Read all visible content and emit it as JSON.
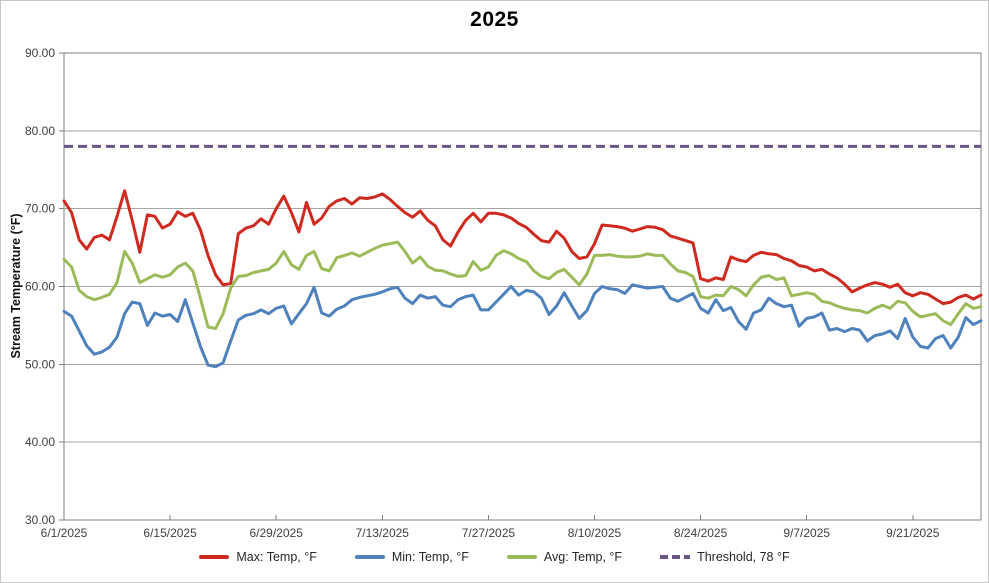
{
  "chart_data": {
    "type": "line",
    "title": "2025",
    "ylabel": "Stream Temperature (°F)",
    "xlabel": "",
    "ylim": [
      30,
      90
    ],
    "x_range_days": [
      0,
      121
    ],
    "x_index_unit": "days from 6/1/2025 (daily values)",
    "grid": "horizontal",
    "legend_position": "bottom",
    "colors": {
      "gridline": "#a6a6a6",
      "axis": "#7f7f7f",
      "tick_text": "#3f3f3f",
      "title_text": "#000000"
    },
    "y_ticks": [
      {
        "value": 90,
        "label": "90.00"
      },
      {
        "value": 80,
        "label": "80.00"
      },
      {
        "value": 70,
        "label": "70.00"
      },
      {
        "value": 60,
        "label": "60.00"
      },
      {
        "value": 50,
        "label": "50.00"
      },
      {
        "value": 40,
        "label": "40.00"
      },
      {
        "value": 30,
        "label": "30.00"
      }
    ],
    "x_ticks": [
      {
        "day": 0,
        "label": "6/1/2025"
      },
      {
        "day": 14,
        "label": "6/15/2025"
      },
      {
        "day": 28,
        "label": "6/29/2025"
      },
      {
        "day": 42,
        "label": "7/13/2025"
      },
      {
        "day": 56,
        "label": "7/27/2025"
      },
      {
        "day": 70,
        "label": "8/10/2025"
      },
      {
        "day": 84,
        "label": "8/24/2025"
      },
      {
        "day": 98,
        "label": "9/7/2025"
      },
      {
        "day": 112,
        "label": "9/21/2025"
      }
    ],
    "series": [
      {
        "name": "Max: Temp, °F",
        "color": "#cf2a20",
        "style": "solid",
        "values": [
          71.0,
          69.5,
          66.0,
          64.8,
          66.3,
          66.6,
          66.0,
          69.0,
          72.3,
          68.5,
          64.4,
          69.2,
          69.0,
          67.5,
          68.0,
          69.6,
          69.0,
          69.4,
          67.3,
          64.0,
          61.5,
          60.2,
          60.4,
          66.8,
          67.5,
          67.8,
          68.7,
          68.0,
          70.0,
          71.6,
          69.5,
          67.0,
          70.8,
          68.0,
          68.8,
          70.3,
          71.0,
          71.3,
          70.6,
          71.4,
          71.3,
          71.5,
          71.9,
          71.2,
          70.3,
          69.5,
          68.9,
          69.7,
          68.5,
          67.8,
          66.0,
          65.2,
          67.0,
          68.5,
          69.4,
          68.3,
          69.4,
          69.4,
          69.2,
          68.8,
          68.1,
          67.6,
          66.7,
          65.9,
          65.7,
          67.1,
          66.2,
          64.5,
          63.6,
          63.8,
          65.5,
          67.9,
          67.8,
          67.7,
          67.5,
          67.1,
          67.4,
          67.7,
          67.6,
          67.3,
          66.5,
          66.2,
          65.9,
          65.6,
          61.0,
          60.7,
          61.1,
          60.9,
          63.8,
          63.4,
          63.2,
          64.0,
          64.4,
          64.2,
          64.1,
          63.6,
          63.3,
          62.7,
          62.5,
          62.0,
          62.2,
          61.6,
          61.1,
          60.3,
          59.3,
          59.8,
          60.2,
          60.5,
          60.3,
          59.9,
          60.3,
          59.2,
          58.8,
          59.2,
          59.0,
          58.4,
          57.8,
          58.0,
          58.6,
          58.9,
          58.4,
          58.9
        ]
      },
      {
        "name": "Min: Temp, °F",
        "color": "#4f81bd",
        "style": "solid",
        "values": [
          56.8,
          56.2,
          54.3,
          52.4,
          51.3,
          51.6,
          52.2,
          53.5,
          56.5,
          58.0,
          57.8,
          55.0,
          56.6,
          56.2,
          56.4,
          55.5,
          58.3,
          55.3,
          52.3,
          49.9,
          49.7,
          50.2,
          53.0,
          55.7,
          56.3,
          56.5,
          57.0,
          56.5,
          57.2,
          57.5,
          55.2,
          56.5,
          57.8,
          59.9,
          56.6,
          56.2,
          57.1,
          57.5,
          58.3,
          58.6,
          58.8,
          59.0,
          59.3,
          59.7,
          59.9,
          58.5,
          57.8,
          58.9,
          58.5,
          58.7,
          57.6,
          57.4,
          58.3,
          58.7,
          58.9,
          57.0,
          57.0,
          58.0,
          59.0,
          60.0,
          58.9,
          59.5,
          59.3,
          58.5,
          56.4,
          57.5,
          59.2,
          57.5,
          55.9,
          56.9,
          59.1,
          60.0,
          59.7,
          59.6,
          59.1,
          60.2,
          60.0,
          59.8,
          59.9,
          60.0,
          58.5,
          58.1,
          58.6,
          59.1,
          57.2,
          56.6,
          58.3,
          56.9,
          57.3,
          55.5,
          54.5,
          56.6,
          57.0,
          58.5,
          57.8,
          57.4,
          57.6,
          54.9,
          55.9,
          56.1,
          56.6,
          54.4,
          54.6,
          54.2,
          54.6,
          54.4,
          53.0,
          53.7,
          53.9,
          54.3,
          53.3,
          55.9,
          53.5,
          52.3,
          52.1,
          53.3,
          53.7,
          52.1,
          53.5,
          56.0,
          55.1,
          55.6
        ]
      },
      {
        "name": "Avg: Temp, °F",
        "color": "#9bbb59",
        "style": "solid",
        "values": [
          63.5,
          62.5,
          59.5,
          58.7,
          58.3,
          58.6,
          59.0,
          60.5,
          64.5,
          63.0,
          60.5,
          61.0,
          61.5,
          61.2,
          61.5,
          62.5,
          63.0,
          62.0,
          58.5,
          54.8,
          54.6,
          56.5,
          59.8,
          61.3,
          61.4,
          61.8,
          62.0,
          62.2,
          63.0,
          64.5,
          62.8,
          62.2,
          64.0,
          64.5,
          62.3,
          62.0,
          63.7,
          64.0,
          64.3,
          63.9,
          64.4,
          64.9,
          65.3,
          65.5,
          65.7,
          64.5,
          63.0,
          63.8,
          62.6,
          62.1,
          62.0,
          61.6,
          61.3,
          61.4,
          63.2,
          62.1,
          62.5,
          64.0,
          64.6,
          64.2,
          63.6,
          63.2,
          62.0,
          61.3,
          61.0,
          61.8,
          62.2,
          61.2,
          60.2,
          61.6,
          64.0,
          64.0,
          64.1,
          63.9,
          63.8,
          63.8,
          63.9,
          64.2,
          64.0,
          64.0,
          62.9,
          62.0,
          61.8,
          61.3,
          58.7,
          58.5,
          58.9,
          58.8,
          60.0,
          59.6,
          58.8,
          60.2,
          61.2,
          61.4,
          60.9,
          61.1,
          58.8,
          59.0,
          59.2,
          59.0,
          58.1,
          57.9,
          57.5,
          57.2,
          57.0,
          56.9,
          56.6,
          57.2,
          57.6,
          57.2,
          58.1,
          57.9,
          56.8,
          56.1,
          56.3,
          56.5,
          55.6,
          55.1,
          56.5,
          57.8,
          57.2,
          57.4
        ]
      },
      {
        "name": "Threshold, 78 °F",
        "color": "#695587",
        "style": "dashed",
        "constant_value": 78
      }
    ]
  }
}
